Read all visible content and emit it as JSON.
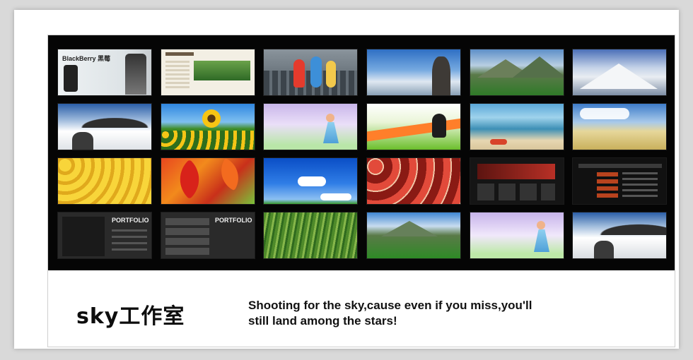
{
  "brand": {
    "logo_text": "sky工作室",
    "tagline_line1": "Shooting for the sky,cause even if you miss,you'll",
    "tagline_line2": "still land among the stars!"
  },
  "gallery": {
    "tiles": [
      {
        "name": "blackberry-ad",
        "label": "BlackBerry 黑莓"
      },
      {
        "name": "website-green",
        "label": ""
      },
      {
        "name": "smurfs-city",
        "label": ""
      },
      {
        "name": "sea-of-clouds",
        "label": ""
      },
      {
        "name": "green-mountains",
        "label": ""
      },
      {
        "name": "snow-mountains",
        "label": ""
      },
      {
        "name": "mist-peaks",
        "label": ""
      },
      {
        "name": "sunflowers",
        "label": ""
      },
      {
        "name": "anime-girl",
        "label": ""
      },
      {
        "name": "panda-meadow",
        "label": ""
      },
      {
        "name": "beach",
        "label": ""
      },
      {
        "name": "wheat-field",
        "label": ""
      },
      {
        "name": "yellow-leaves",
        "label": ""
      },
      {
        "name": "red-leaves",
        "label": ""
      },
      {
        "name": "blue-sky",
        "label": ""
      },
      {
        "name": "apples",
        "label": ""
      },
      {
        "name": "dark-website-red",
        "label": ""
      },
      {
        "name": "dark-website-list",
        "label": ""
      },
      {
        "name": "dark-website-portfolio",
        "label": "PORTFOLIO"
      },
      {
        "name": "dark-website-gallery",
        "label": "PORTFOLIO"
      },
      {
        "name": "green-grass",
        "label": ""
      },
      {
        "name": "valley-sky",
        "label": ""
      },
      {
        "name": "anime-girl-2",
        "label": ""
      },
      {
        "name": "mist-peaks-2",
        "label": ""
      }
    ]
  }
}
